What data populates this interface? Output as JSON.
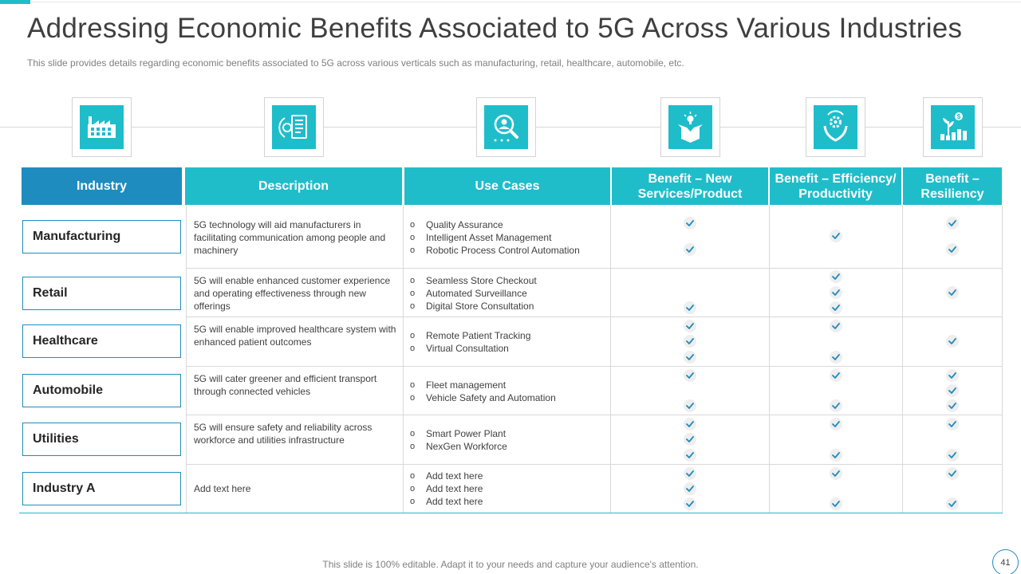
{
  "slide": {
    "title": "Addressing Economic Benefits Associated to 5G Across Various Industries",
    "subtitle": "This slide provides details regarding economic benefits associated to 5G across various verticals such as manufacturing, retail, healthcare, automobile, etc.",
    "footer": "This slide is 100% editable. Adapt it to your needs and capture your audience's attention.",
    "page_number": "41",
    "accent_color": "#1fbdca",
    "secondary_color": "#1f8cbf"
  },
  "icons": [
    "factory-icon",
    "digital-document-icon",
    "magnifier-person-icon",
    "open-box-idea-icon",
    "hands-gear-icon",
    "money-growth-icon"
  ],
  "table": {
    "headers": {
      "industry": "Industry",
      "description": "Description",
      "use_cases": "Use Cases",
      "benefit_new": "Benefit – New Services/Product",
      "benefit_efficiency": "Benefit – Efficiency/ Productivity",
      "benefit_resiliency": "Benefit – Resiliency"
    },
    "rows": [
      {
        "industry": "Manufacturing",
        "description": "5G technology will aid manufacturers in facilitating communication among people and machinery",
        "use_cases": [
          "Quality Assurance",
          "Intelligent Asset Management",
          "Robotic Process Control Automation"
        ],
        "new_checks": 2,
        "efficiency_checks": 1,
        "resiliency_checks": 2
      },
      {
        "industry": "Retail",
        "description": "5G will enable enhanced customer experience and operating effectiveness through new offerings",
        "use_cases": [
          "Seamless Store Checkout",
          "Automated Surveillance",
          "Digital Store Consultation"
        ],
        "new_checks": 1,
        "efficiency_checks": 3,
        "resiliency_checks": 1
      },
      {
        "industry": "Healthcare",
        "description": "5G will enable improved healthcare system with enhanced patient outcomes",
        "use_cases": [
          "Remote Patient Tracking",
          "Virtual Consultation"
        ],
        "new_checks": 3,
        "efficiency_checks": 2,
        "resiliency_checks": 1
      },
      {
        "industry": "Automobile",
        "description": "5G will cater greener and efficient transport through connected vehicles",
        "use_cases": [
          "Fleet management",
          "Vehicle Safety and Automation"
        ],
        "new_checks": 2,
        "efficiency_checks": 2,
        "resiliency_checks": 3
      },
      {
        "industry": "Utilities",
        "description": "5G will ensure safety and reliability across workforce and utilities infrastructure",
        "use_cases": [
          "Smart Power Plant",
          "NexGen Workforce"
        ],
        "new_checks": 3,
        "efficiency_checks": 2,
        "resiliency_checks": 2
      },
      {
        "industry": "Industry A",
        "description": "Add text here",
        "use_cases": [
          "Add text here",
          "Add text here",
          "Add text here"
        ],
        "new_checks": 3,
        "efficiency_checks": 2,
        "resiliency_checks": 2
      }
    ]
  }
}
